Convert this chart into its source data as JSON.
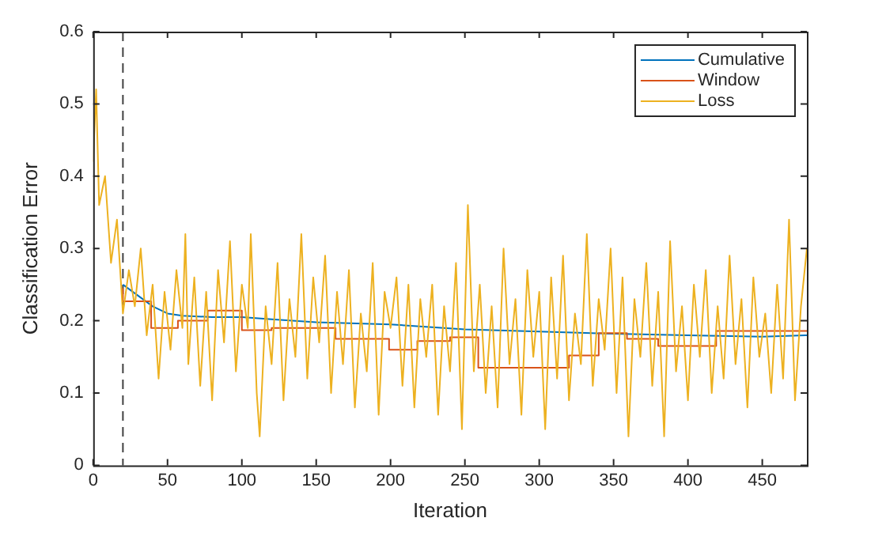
{
  "chart_data": {
    "type": "line",
    "xlabel": "Iteration",
    "ylabel": "Classification Error",
    "xlim": [
      0,
      480
    ],
    "xticks": [
      0,
      50,
      100,
      150,
      200,
      250,
      300,
      350,
      400,
      450
    ],
    "ylim": [
      0,
      0.6
    ],
    "yticks": [
      0,
      0.1,
      0.2,
      0.3,
      0.4,
      0.5,
      0.6
    ],
    "grid": false,
    "legend": "top right",
    "marker": "none",
    "ref_lines": [
      {
        "axis": "x",
        "value": 20,
        "color": "#404040",
        "line_style": "dashed"
      }
    ],
    "series": [
      {
        "name": "Cumulative",
        "color": "#0072bd",
        "x": [
          20,
          30,
          40,
          50,
          60,
          80,
          100,
          120,
          150,
          200,
          250,
          300,
          350,
          400,
          450,
          480
        ],
        "values": [
          0.25,
          0.235,
          0.22,
          0.21,
          0.207,
          0.205,
          0.205,
          0.202,
          0.198,
          0.195,
          0.188,
          0.185,
          0.182,
          0.18,
          0.178,
          0.18
        ]
      },
      {
        "name": "Window",
        "type": "step",
        "color": "#d95319",
        "x": [
          20,
          39,
          57,
          77,
          100,
          120,
          163,
          179,
          199,
          218,
          240,
          259,
          320,
          340,
          359,
          380,
          419,
          439,
          480
        ],
        "values": [
          0.245,
          0.227,
          0.19,
          0.2,
          0.214,
          0.187,
          0.19,
          0.175,
          0.175,
          0.16,
          0.172,
          0.177,
          0.135,
          0.152,
          0.183,
          0.175,
          0.165,
          0.186,
          0.186
        ]
      },
      {
        "name": "Loss",
        "color": "#edb120",
        "x": [
          0,
          2,
          4,
          8,
          12,
          16,
          20,
          24,
          28,
          32,
          36,
          40,
          44,
          48,
          52,
          56,
          60,
          62,
          64,
          68,
          72,
          76,
          80,
          84,
          88,
          92,
          96,
          100,
          104,
          106,
          110,
          112,
          116,
          120,
          124,
          128,
          132,
          136,
          140,
          144,
          148,
          152,
          156,
          160,
          164,
          168,
          172,
          176,
          180,
          184,
          188,
          192,
          196,
          200,
          204,
          208,
          212,
          216,
          220,
          224,
          228,
          232,
          236,
          240,
          244,
          248,
          252,
          256,
          260,
          264,
          268,
          272,
          276,
          280,
          284,
          288,
          292,
          296,
          300,
          304,
          308,
          312,
          316,
          320,
          324,
          328,
          332,
          336,
          340,
          344,
          348,
          352,
          356,
          360,
          364,
          368,
          372,
          376,
          380,
          384,
          388,
          392,
          396,
          400,
          404,
          408,
          412,
          416,
          420,
          424,
          428,
          432,
          436,
          440,
          444,
          448,
          452,
          456,
          460,
          464,
          468,
          472,
          476,
          480
        ],
        "values": [
          0.42,
          0.52,
          0.36,
          0.4,
          0.28,
          0.34,
          0.21,
          0.27,
          0.22,
          0.3,
          0.18,
          0.25,
          0.12,
          0.24,
          0.16,
          0.27,
          0.19,
          0.32,
          0.14,
          0.26,
          0.11,
          0.24,
          0.09,
          0.27,
          0.17,
          0.31,
          0.13,
          0.25,
          0.19,
          0.32,
          0.1,
          0.04,
          0.22,
          0.14,
          0.28,
          0.09,
          0.23,
          0.15,
          0.32,
          0.12,
          0.26,
          0.17,
          0.29,
          0.1,
          0.24,
          0.14,
          0.27,
          0.08,
          0.21,
          0.13,
          0.28,
          0.07,
          0.24,
          0.19,
          0.26,
          0.11,
          0.25,
          0.08,
          0.23,
          0.15,
          0.25,
          0.07,
          0.22,
          0.13,
          0.28,
          0.05,
          0.36,
          0.13,
          0.25,
          0.1,
          0.22,
          0.08,
          0.3,
          0.14,
          0.23,
          0.07,
          0.27,
          0.15,
          0.24,
          0.05,
          0.26,
          0.12,
          0.29,
          0.09,
          0.21,
          0.14,
          0.32,
          0.11,
          0.23,
          0.16,
          0.3,
          0.1,
          0.26,
          0.04,
          0.23,
          0.15,
          0.28,
          0.11,
          0.24,
          0.04,
          0.31,
          0.13,
          0.22,
          0.09,
          0.25,
          0.15,
          0.27,
          0.1,
          0.22,
          0.12,
          0.29,
          0.14,
          0.23,
          0.08,
          0.26,
          0.15,
          0.21,
          0.1,
          0.25,
          0.12,
          0.34,
          0.09,
          0.22,
          0.3
        ]
      }
    ]
  }
}
